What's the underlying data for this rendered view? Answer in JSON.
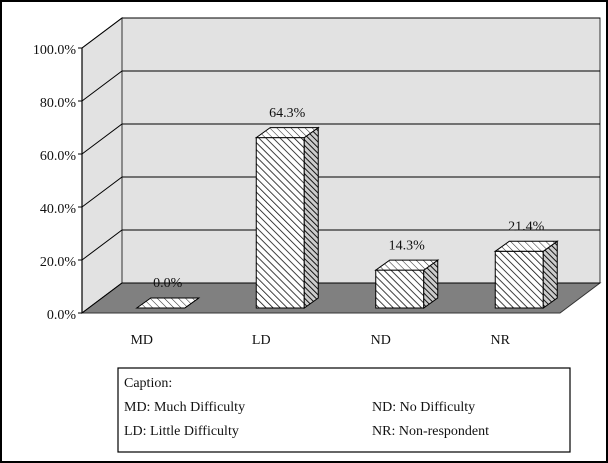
{
  "chart_data": {
    "type": "bar3d",
    "categories": [
      "MD",
      "LD",
      "ND",
      "NR"
    ],
    "values": [
      0,
      64.3,
      14.3,
      21.4
    ],
    "value_labels": [
      "0.0%",
      "64.3%",
      "14.3%",
      "21.4%"
    ],
    "ylim": [
      0,
      100
    ],
    "yticks": [
      {
        "value": 0,
        "label": "0.0%"
      },
      {
        "value": 20,
        "label": "20.0%"
      },
      {
        "value": 40,
        "label": "40.0%"
      },
      {
        "value": 60,
        "label": "60.0%"
      },
      {
        "value": 80,
        "label": "80.0%"
      },
      {
        "value": 100,
        "label": "100.0%"
      }
    ],
    "grid": true,
    "caption": {
      "title": "Caption:",
      "items": [
        "MD: Much Difficulty",
        "ND: No Difficulty",
        "LD: Little Difficulty",
        "NR: Non-respondent"
      ]
    }
  }
}
